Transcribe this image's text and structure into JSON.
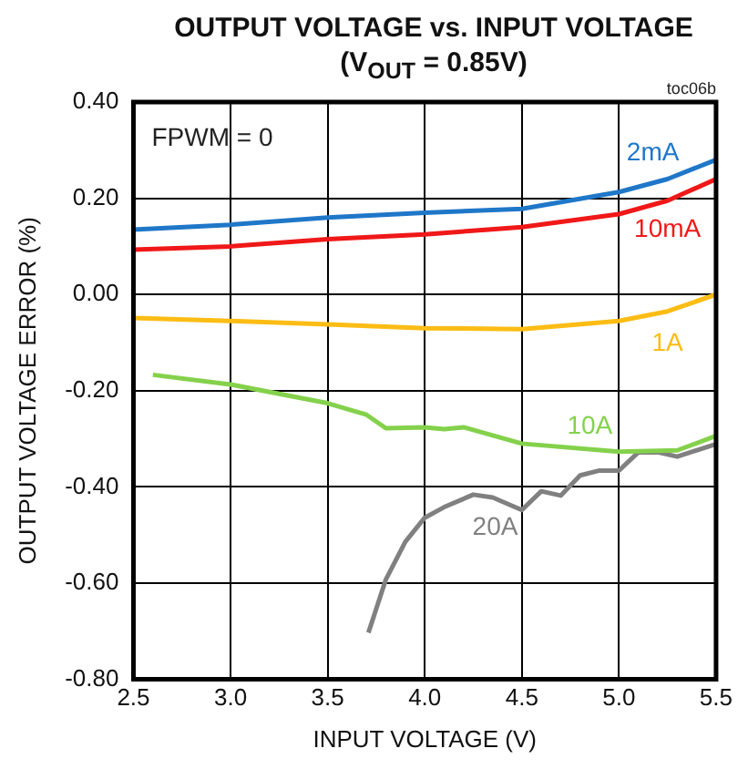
{
  "chart_data": {
    "type": "line",
    "title": "OUTPUT VOLTAGE vs. INPUT VOLTAGE",
    "subtitle": "(V$_{OUT}$ = 0.85V)",
    "xlabel": "INPUT VOLTAGE (V)",
    "ylabel": "OUTPUT VOLTAGE ERROR (%)",
    "annotations": [
      "toc06b",
      "FPWM = 0"
    ],
    "series": [
      {
        "name": "2mA",
        "color": "#1f77c8",
        "x": [
          2.5,
          3.0,
          3.5,
          4.0,
          4.5,
          5.0,
          5.25,
          5.5
        ],
        "values": [
          0.135,
          0.145,
          0.16,
          0.17,
          0.178,
          0.213,
          0.24,
          0.28
        ]
      },
      {
        "name": "10mA",
        "color": "#f01818",
        "x": [
          2.5,
          3.0,
          3.5,
          4.0,
          4.5,
          5.0,
          5.25,
          5.5
        ],
        "values": [
          0.093,
          0.1,
          0.115,
          0.125,
          0.14,
          0.167,
          0.195,
          0.24
        ]
      },
      {
        "name": "1A",
        "color": "#fbbc14",
        "x": [
          2.5,
          3.0,
          3.5,
          4.0,
          4.5,
          5.0,
          5.25,
          5.5
        ],
        "values": [
          -0.049,
          -0.055,
          -0.062,
          -0.07,
          -0.072,
          -0.055,
          -0.035,
          0.0
        ]
      },
      {
        "name": "10A",
        "color": "#84d14c",
        "x": [
          2.6,
          3.0,
          3.5,
          3.7,
          3.8,
          4.0,
          4.1,
          4.2,
          4.5,
          5.0,
          5.3,
          5.5
        ],
        "values": [
          -0.167,
          -0.187,
          -0.226,
          -0.25,
          -0.278,
          -0.276,
          -0.28,
          -0.276,
          -0.31,
          -0.327,
          -0.324,
          -0.294
        ]
      },
      {
        "name": "20A",
        "color": "#808080",
        "x": [
          3.71,
          3.8,
          3.9,
          4.0,
          4.1,
          4.25,
          4.35,
          4.5,
          4.6,
          4.7,
          4.8,
          4.9,
          5.0,
          5.1,
          5.2,
          5.3,
          5.5
        ],
        "values": [
          -0.703,
          -0.592,
          -0.514,
          -0.464,
          -0.442,
          -0.416,
          -0.422,
          -0.448,
          -0.409,
          -0.418,
          -0.376,
          -0.366,
          -0.366,
          -0.328,
          -0.328,
          -0.337,
          -0.311
        ]
      }
    ],
    "xlim": [
      2.5,
      5.5
    ],
    "xticks": [
      2.5,
      {
        "value": 3,
        "label": "3.0"
      },
      3.5,
      {
        "value": 4,
        "label": "4.0"
      },
      4.5,
      {
        "value": 5,
        "label": "5.0"
      },
      5.5
    ],
    "ylim": [
      -0.8,
      0.4
    ],
    "yticks": [
      {
        "value": -0.8,
        "label": "-0.80"
      },
      {
        "value": -0.6,
        "label": "-0.60"
      },
      {
        "value": -0.4,
        "label": "-0.40"
      },
      {
        "value": -0.2,
        "label": "-0.20"
      },
      {
        "value": 0,
        "label": "0.00"
      },
      {
        "value": 0.2,
        "label": "0.20"
      },
      {
        "value": 0.4,
        "label": "0.40"
      }
    ],
    "grid": true,
    "legend": false,
    "marker": "none",
    "line_style": "solid"
  }
}
